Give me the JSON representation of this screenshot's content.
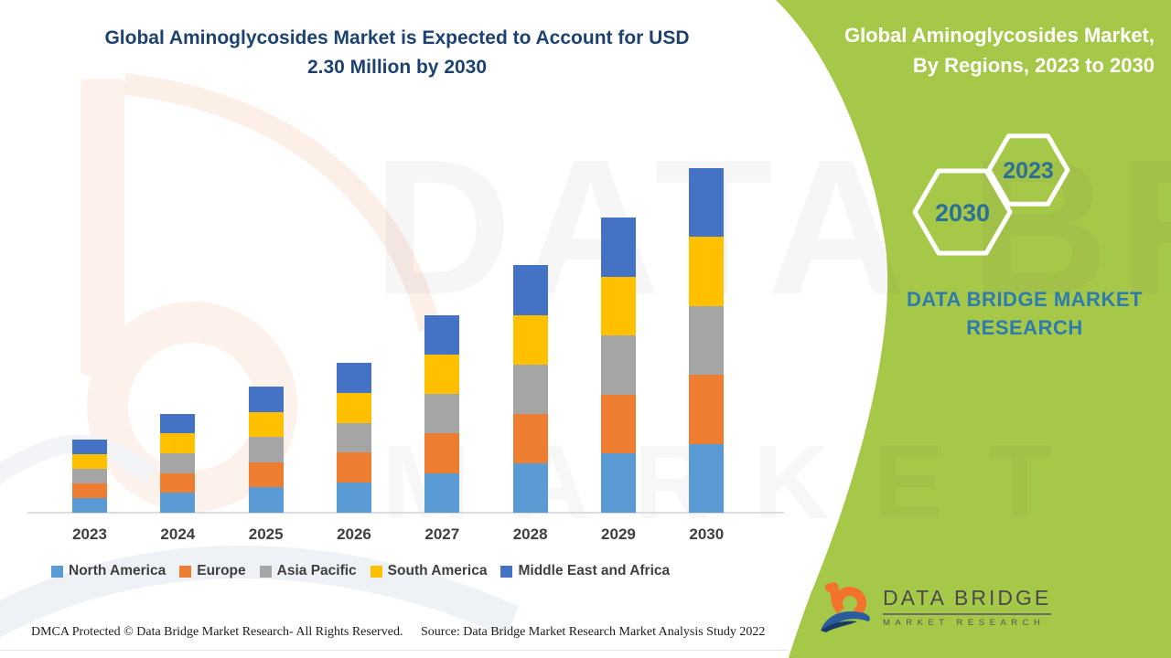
{
  "page": {
    "title_line1": "Global Aminoglycosides Market is Expected to Account for USD",
    "title_line2": "2.30 Million by 2030",
    "footer_left": "DMCA Protected © Data Bridge Market Research- All Rights Reserved.",
    "footer_right": "Source: Data Bridge Market Research Market Analysis Study 2022"
  },
  "side_panel": {
    "background_color": "#a6c848",
    "heading_line1": "Global Aminoglycosides Market,",
    "heading_line2": "By Regions, 2023 to 2030",
    "hexagon_small_year": "2023",
    "hexagon_large_year": "2030",
    "year_text_color": "#2d7096",
    "brand_line1": "DATA BRIDGE MARKET",
    "brand_line2": "RESEARCH"
  },
  "logo": {
    "name": "DATA BRIDGE",
    "subname": "MARKET RESEARCH"
  },
  "watermark": {
    "line1": "DATA BRIDGE",
    "line2": "MARKET RESEARCH"
  },
  "chart_data": {
    "type": "bar",
    "stacked": true,
    "title": "Global Aminoglycosides Market, By Regions, 2023 to 2030",
    "unit": "USD Million",
    "categories": [
      "2023",
      "2024",
      "2025",
      "2026",
      "2027",
      "2028",
      "2029",
      "2030"
    ],
    "totals": [
      0.49,
      0.66,
      0.84,
      1.0,
      1.32,
      1.65,
      1.97,
      2.3
    ],
    "series": [
      {
        "name": "North America",
        "color": "#5B9BD5",
        "values": [
          0.098,
          0.132,
          0.168,
          0.2,
          0.264,
          0.33,
          0.394,
          0.46
        ]
      },
      {
        "name": "Europe",
        "color": "#ED7D31",
        "values": [
          0.098,
          0.132,
          0.168,
          0.2,
          0.264,
          0.33,
          0.394,
          0.46
        ]
      },
      {
        "name": "Asia Pacific",
        "color": "#A5A5A5",
        "values": [
          0.098,
          0.132,
          0.168,
          0.2,
          0.264,
          0.33,
          0.394,
          0.46
        ]
      },
      {
        "name": "South America",
        "color": "#FFC000",
        "values": [
          0.098,
          0.132,
          0.168,
          0.2,
          0.264,
          0.33,
          0.394,
          0.46
        ]
      },
      {
        "name": "Middle East and Africa",
        "color": "#4472C4",
        "values": [
          0.098,
          0.132,
          0.168,
          0.2,
          0.264,
          0.33,
          0.394,
          0.46
        ]
      }
    ],
    "ylim": [
      0,
      2.45
    ],
    "grid": false,
    "y_axis_shown": false,
    "legend_position": "bottom"
  }
}
